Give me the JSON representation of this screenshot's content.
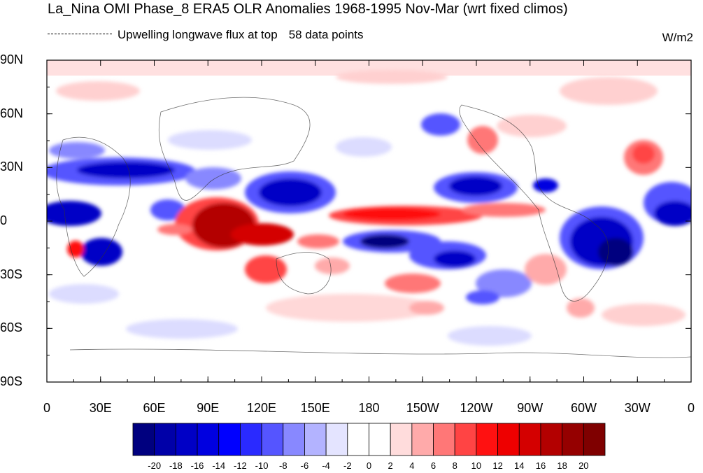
{
  "title": "La_Nina OMI Phase_8 ERA5 OLR Anomalies 1968-1995 Nov-Mar (wrt fixed climos)",
  "subtitle": {
    "variable": "Upwelling longwave flux at top",
    "count": "58 data points"
  },
  "units": "W/m2",
  "axes": {
    "y_ticks": [
      "90N",
      "60N",
      "30N",
      "0",
      "30S",
      "60S",
      "90S"
    ],
    "x_ticks": [
      "0",
      "30E",
      "60E",
      "90E",
      "120E",
      "150E",
      "180",
      "150W",
      "120W",
      "90W",
      "60W",
      "30W",
      "0"
    ]
  },
  "colorbar": {
    "labels": [
      "-20",
      "-18",
      "-16",
      "-14",
      "-12",
      "-10",
      "-8",
      "-6",
      "-4",
      "-2",
      "0",
      "2",
      "4",
      "6",
      "8",
      "10",
      "12",
      "14",
      "16",
      "18",
      "20"
    ],
    "colors": [
      "#00007f",
      "#0000a8",
      "#0000c6",
      "#0000e0",
      "#0000ff",
      "#2a2aff",
      "#5555ff",
      "#8888ff",
      "#b3b3ff",
      "#e4e4ff",
      "#ffffff",
      "#ffffff",
      "#ffdcdc",
      "#ffaaaa",
      "#ff7777",
      "#ff4444",
      "#ff1111",
      "#ee0000",
      "#d40000",
      "#b30000",
      "#950000",
      "#7f0000"
    ]
  },
  "anomaly_colors": {
    "strong_negative": "#0000c6",
    "negative": "#5555ff",
    "weak_negative": "#b3b3ff",
    "weak_positive": "#ffc0c0",
    "positive": "#ff4444",
    "strong_positive": "#a00000"
  }
}
